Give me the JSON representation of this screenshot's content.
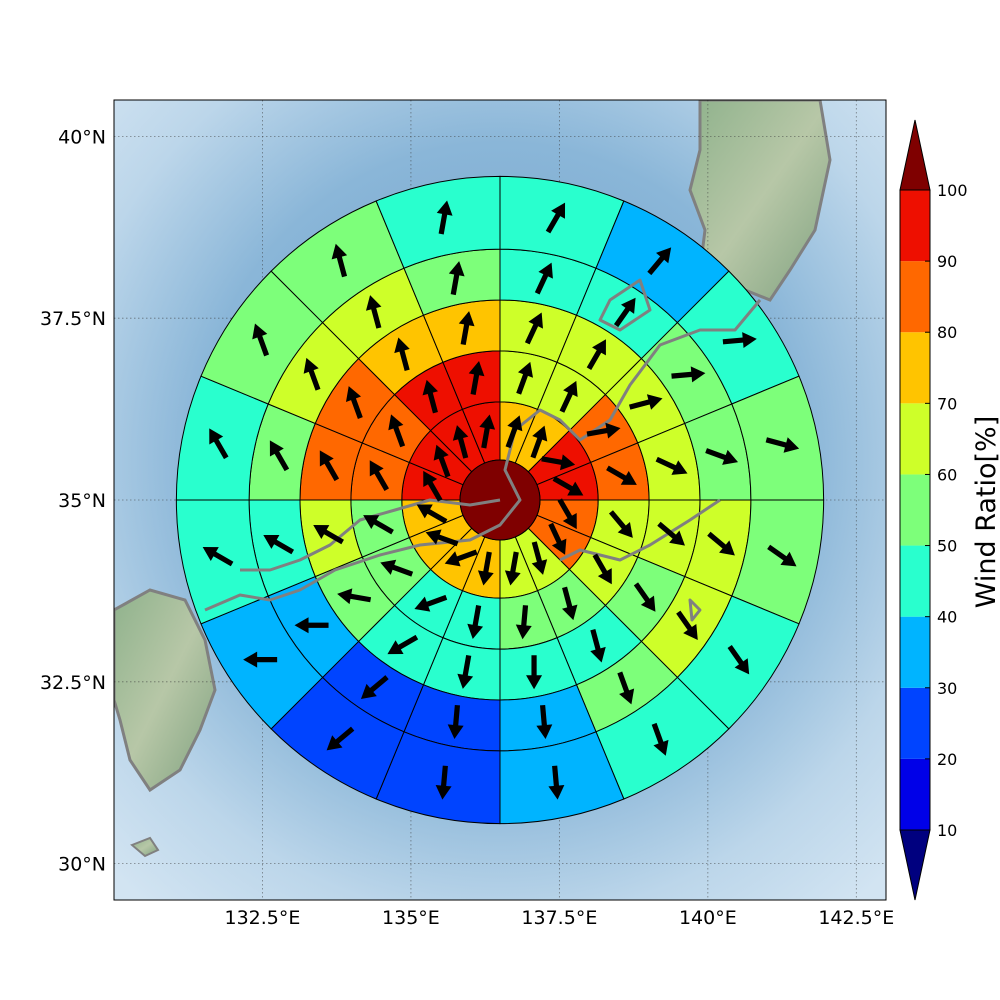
{
  "chart_data": {
    "type": "heatmap",
    "title": "",
    "map": {
      "lon_range": [
        130.0,
        143.0
      ],
      "lat_range": [
        29.5,
        40.5
      ],
      "x_ticks": [
        "132.5°E",
        "135°E",
        "137.5°E",
        "140°E",
        "142.5°E"
      ],
      "x_tick_values": [
        132.5,
        135,
        137.5,
        140,
        142.5
      ],
      "y_ticks": [
        "30°N",
        "32.5°N",
        "35°N",
        "37.5°N",
        "40°N"
      ],
      "y_tick_values": [
        30,
        32.5,
        35,
        37.5,
        40
      ],
      "grid": true,
      "background": "shaded relief map with coastlines"
    },
    "polar_grid": {
      "center": [
        136.5,
        35.0
      ],
      "sectors": 16,
      "sector_order": "starting north, clockwise",
      "rings_deg_lat": [
        0.55,
        1.35,
        2.05,
        2.75,
        3.45,
        4.45
      ],
      "center_value": 100,
      "ring_values": [
        [
          70,
          70,
          90,
          90,
          80,
          80,
          60,
          60,
          70,
          70,
          70,
          70,
          90,
          90,
          90,
          90
        ],
        [
          60,
          60,
          80,
          80,
          60,
          60,
          50,
          50,
          40,
          40,
          50,
          50,
          80,
          80,
          90,
          90
        ],
        [
          60,
          60,
          60,
          60,
          60,
          50,
          40,
          40,
          40,
          40,
          50,
          60,
          80,
          80,
          70,
          70
        ],
        [
          40,
          40,
          50,
          50,
          60,
          60,
          50,
          30,
          20,
          20,
          30,
          40,
          50,
          60,
          60,
          50
        ],
        [
          40,
          30,
          40,
          50,
          50,
          40,
          40,
          30,
          20,
          20,
          30,
          40,
          40,
          50,
          50,
          40
        ]
      ],
      "arrow_dir_deg": [
        [
          20,
          20,
          100,
          120,
          150,
          155,
          165,
          190,
          190,
          250,
          290,
          300,
          330,
          340,
          345,
          10
        ],
        [
          20,
          25,
          80,
          120,
          140,
          150,
          165,
          185,
          190,
          250,
          290,
          300,
          330,
          340,
          345,
          10
        ],
        [
          25,
          30,
          75,
          115,
          130,
          145,
          165,
          180,
          190,
          240,
          280,
          300,
          330,
          340,
          345,
          10
        ],
        [
          25,
          35,
          85,
          110,
          130,
          145,
          160,
          175,
          185,
          230,
          270,
          300,
          330,
          340,
          345,
          10
        ],
        [
          30,
          40,
          85,
          105,
          125,
          145,
          160,
          175,
          185,
          230,
          270,
          300,
          330,
          340,
          345,
          10
        ]
      ]
    },
    "colorbar": {
      "label": "Wind Ratio[%]",
      "tick_labels": [
        "10",
        "20",
        "30",
        "40",
        "50",
        "60",
        "70",
        "80",
        "90",
        "100"
      ],
      "bounds": [
        10,
        20,
        30,
        40,
        50,
        60,
        70,
        80,
        90,
        100
      ],
      "colors": [
        "#0000e8",
        "#0044ff",
        "#00b4ff",
        "#29ffce",
        "#7dff7a",
        "#ceff29",
        "#ffc400",
        "#ff6800",
        "#ee0f00"
      ],
      "under_color": "#00007f",
      "over_color": "#7f0000",
      "extend": "both"
    }
  }
}
